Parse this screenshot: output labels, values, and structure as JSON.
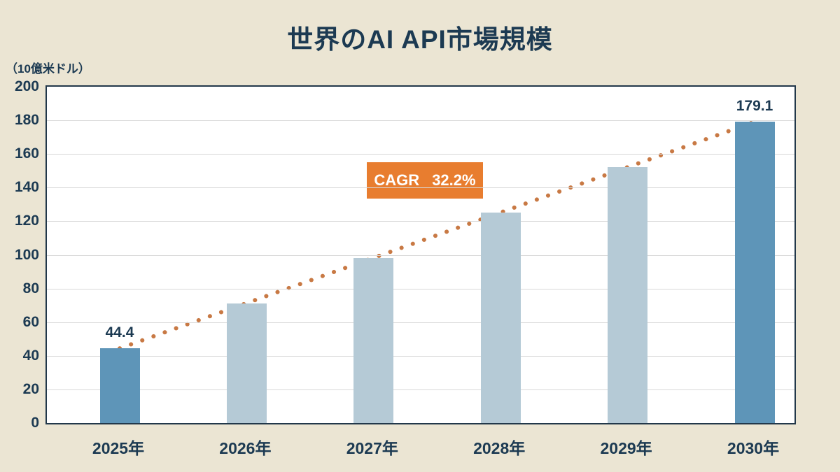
{
  "title": "世界のAI API市場規模",
  "unit_label": "（10億米ドル）",
  "cagr_badge": {
    "label": "CAGR",
    "value": "32.2%"
  },
  "colors": {
    "background": "#EBE5D3",
    "plot_background": "#FFFFFF",
    "plot_border": "#22384A",
    "gridline": "#D8D8D8",
    "bar_highlight": "#5E95B8",
    "bar_regular": "#B5CAD6",
    "trend_dot": "#C87944",
    "badge_background": "#E87D2F",
    "badge_text": "#FFFFFF",
    "text": "#1C3A52"
  },
  "chart_data": {
    "type": "bar",
    "title": "世界のAI API市場規模",
    "ylabel": "（10億米ドル）",
    "categories": [
      "2025年",
      "2026年",
      "2027年",
      "2028年",
      "2029年",
      "2030年"
    ],
    "values": [
      44.4,
      71.3,
      98.3,
      125.2,
      152.2,
      179.1
    ],
    "labeled_points": [
      {
        "index": 0,
        "label": "44.4"
      },
      {
        "index": 5,
        "label": "179.1"
      }
    ],
    "highlight_indices": [
      0,
      5
    ],
    "ylim": [
      0,
      200
    ],
    "ytick_step": 20,
    "yticks": [
      0,
      20,
      40,
      60,
      80,
      100,
      120,
      140,
      160,
      180,
      200
    ],
    "grid": true,
    "legend": "none",
    "trendline": {
      "style": "dotted",
      "color": "#C87944",
      "from_index": 0,
      "to_index": 5
    },
    "annotation": "CAGR 32.2%"
  }
}
